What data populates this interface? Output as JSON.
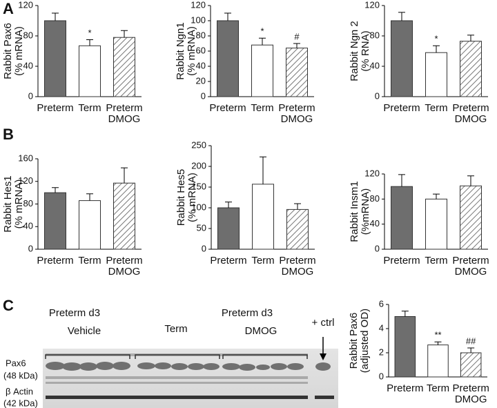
{
  "panels": [
    "A",
    "B",
    "C"
  ],
  "chart_data": [
    {
      "type": "bar",
      "ylabel": [
        "Rabbit Pax6",
        "(% mRNA)"
      ],
      "categories": [
        [
          "Preterm"
        ],
        [
          "Term"
        ],
        [
          "Preterm",
          "DMOG"
        ]
      ],
      "values": [
        100,
        67,
        78
      ],
      "errors": [
        10,
        8,
        9
      ],
      "significance": [
        null,
        "*",
        null
      ],
      "fills": [
        "#6e6e6e",
        "#ffffff",
        "hatched"
      ],
      "ylim": [
        0,
        120
      ],
      "yticks": [
        0,
        40,
        80,
        120
      ]
    },
    {
      "type": "bar",
      "ylabel": [
        "Rabbit Ngn1",
        "(% mRNA)"
      ],
      "categories": [
        [
          "Preterm"
        ],
        [
          "Term"
        ],
        [
          "Preterm",
          "DMOG"
        ]
      ],
      "values": [
        100,
        68,
        64
      ],
      "errors": [
        10,
        9,
        6
      ],
      "significance": [
        null,
        "*",
        "#"
      ],
      "fills": [
        "#6e6e6e",
        "#ffffff",
        "hatched"
      ],
      "ylim": [
        0,
        120
      ],
      "yticks": [
        0,
        20,
        40,
        60,
        80,
        100,
        120
      ]
    },
    {
      "type": "bar",
      "ylabel": [
        "Rabbit Ngn 2",
        "(% RNA)"
      ],
      "categories": [
        [
          "Preterm"
        ],
        [
          "Term"
        ],
        [
          "Preterm",
          "DMOG"
        ]
      ],
      "values": [
        100,
        58,
        73
      ],
      "errors": [
        11,
        9,
        8
      ],
      "significance": [
        null,
        "*",
        null
      ],
      "fills": [
        "#6e6e6e",
        "#ffffff",
        "hatched"
      ],
      "ylim": [
        0,
        120
      ],
      "yticks": [
        0,
        40,
        80,
        120
      ]
    },
    {
      "type": "bar",
      "ylabel": [
        "Rabbit Hes1",
        "(% mRNA)"
      ],
      "categories": [
        [
          "Preterm"
        ],
        [
          "Term"
        ],
        [
          "Preterm",
          "DMOG"
        ]
      ],
      "values": [
        100,
        86,
        117
      ],
      "errors": [
        9,
        12,
        27
      ],
      "significance": [
        null,
        null,
        null
      ],
      "fills": [
        "#6e6e6e",
        "#ffffff",
        "hatched"
      ],
      "ylim": [
        0,
        160
      ],
      "yticks": [
        0,
        40,
        80,
        120,
        160
      ]
    },
    {
      "type": "bar",
      "ylabel": [
        "Rabbit Hes5",
        "(% mRNA)"
      ],
      "categories": [
        [
          "Preterm"
        ],
        [
          "Term"
        ],
        [
          "Preterm",
          "DMOG"
        ]
      ],
      "values": [
        100,
        157,
        96
      ],
      "errors": [
        14,
        66,
        14
      ],
      "significance": [
        null,
        null,
        null
      ],
      "fills": [
        "#6e6e6e",
        "#ffffff",
        "hatched"
      ],
      "ylim": [
        0,
        250
      ],
      "yticks": [
        0,
        50,
        100,
        150,
        200,
        250
      ]
    },
    {
      "type": "bar",
      "ylabel": [
        "Rabbit Insm1",
        "(%mRNA)"
      ],
      "categories": [
        [
          "Preterm"
        ],
        [
          "Term"
        ],
        [
          "Preterm",
          "DMOG"
        ]
      ],
      "values": [
        100,
        80,
        101
      ],
      "errors": [
        19,
        8,
        16
      ],
      "significance": [
        null,
        null,
        null
      ],
      "fills": [
        "#6e6e6e",
        "#ffffff",
        "hatched"
      ],
      "ylim": [
        0,
        120
      ],
      "yticks": [
        0,
        40,
        80,
        120
      ]
    },
    {
      "type": "bar",
      "ylabel": [
        "Rabbit Pax6",
        "(adjusted OD)"
      ],
      "categories": [
        [
          "Preterm"
        ],
        [
          "Term"
        ],
        [
          "Preterm",
          "DMOG"
        ]
      ],
      "values": [
        5.0,
        2.65,
        2.0
      ],
      "errors": [
        0.45,
        0.25,
        0.4
      ],
      "significance": [
        null,
        "**",
        "##"
      ],
      "fills": [
        "#6e6e6e",
        "#ffffff",
        "hatched"
      ],
      "ylim": [
        0,
        6
      ],
      "yticks": [
        0,
        2,
        4,
        6
      ]
    }
  ],
  "blot": {
    "group1": [
      "Preterm d3",
      "Vehicle"
    ],
    "group2": "Term",
    "group3": [
      "Preterm d3",
      "DMOG"
    ],
    "control": "+ ctrl",
    "pax6": [
      "Pax6",
      "(48 kDa)"
    ],
    "actin": [
      "β Actin",
      "(42 kDa)"
    ]
  }
}
